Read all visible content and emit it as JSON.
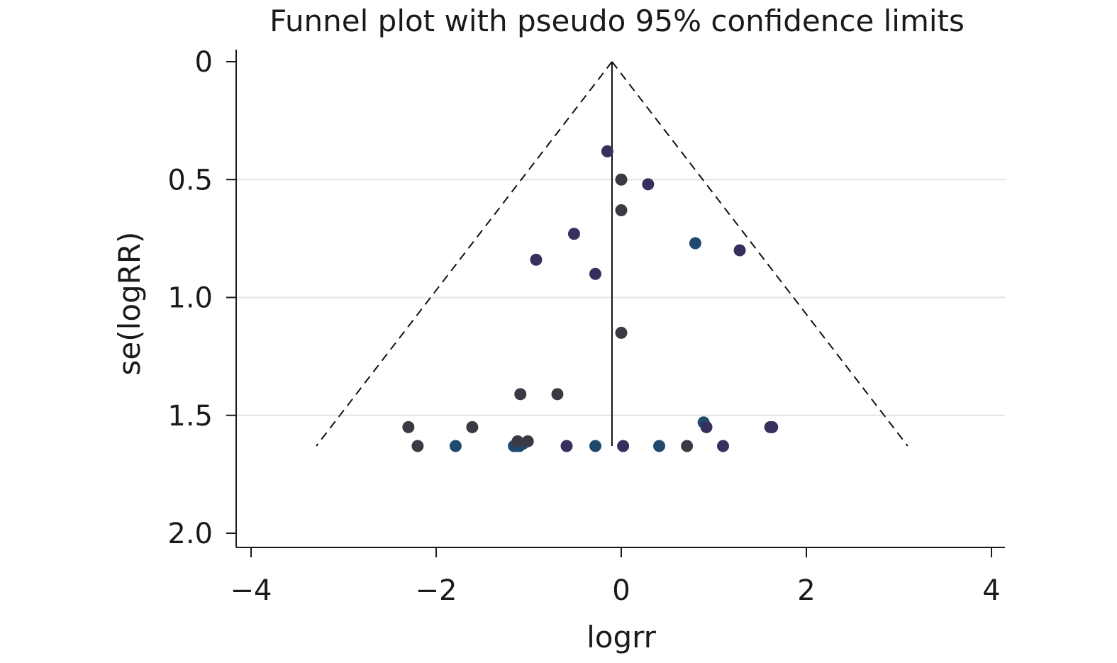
{
  "chart_data": {
    "type": "scatter",
    "title": "Funnel plot with pseudo 95% confidence limits",
    "xlabel": "logrr",
    "ylabel": "se(logRR)",
    "xlim": [
      -4,
      4
    ],
    "ylim": [
      0,
      2.0
    ],
    "y_reversed": true,
    "x_ticks": [
      -4,
      -2,
      0,
      2,
      4
    ],
    "x_tick_labels": [
      "−4",
      "−2",
      "0",
      "2",
      "4"
    ],
    "y_ticks": [
      0,
      0.5,
      1.0,
      1.5,
      2.0
    ],
    "y_tick_labels": [
      "0",
      "0.5",
      "1.0",
      "1.5",
      "2.0"
    ],
    "grid": "horizontal",
    "pooled_estimate": -0.1,
    "funnel_max_se": 1.63,
    "colors": {
      "dark_gray": "#3a3a44",
      "navy": "#35305e",
      "teal": "#1f4a6e",
      "axis": "#1a1a1a",
      "grid": "#e3e3e3"
    },
    "points": [
      {
        "x": -0.15,
        "y": 0.38,
        "c": "navy"
      },
      {
        "x": 0.0,
        "y": 0.5,
        "c": "dark_gray"
      },
      {
        "x": 0.29,
        "y": 0.52,
        "c": "navy"
      },
      {
        "x": 0.0,
        "y": 0.63,
        "c": "dark_gray"
      },
      {
        "x": -0.51,
        "y": 0.73,
        "c": "navy"
      },
      {
        "x": 0.8,
        "y": 0.77,
        "c": "teal"
      },
      {
        "x": 1.28,
        "y": 0.8,
        "c": "navy"
      },
      {
        "x": -0.92,
        "y": 0.84,
        "c": "navy"
      },
      {
        "x": -0.28,
        "y": 0.9,
        "c": "navy"
      },
      {
        "x": 0.0,
        "y": 1.15,
        "c": "dark_gray"
      },
      {
        "x": -1.09,
        "y": 1.41,
        "c": "dark_gray"
      },
      {
        "x": -0.69,
        "y": 1.41,
        "c": "dark_gray"
      },
      {
        "x": 0.89,
        "y": 1.53,
        "c": "teal"
      },
      {
        "x": 0.92,
        "y": 1.55,
        "c": "navy"
      },
      {
        "x": -2.3,
        "y": 1.55,
        "c": "dark_gray"
      },
      {
        "x": -1.61,
        "y": 1.55,
        "c": "dark_gray"
      },
      {
        "x": 1.61,
        "y": 1.55,
        "c": "navy"
      },
      {
        "x": 1.63,
        "y": 1.55,
        "c": "navy"
      },
      {
        "x": -2.2,
        "y": 1.63,
        "c": "dark_gray"
      },
      {
        "x": -1.79,
        "y": 1.63,
        "c": "teal"
      },
      {
        "x": -1.16,
        "y": 1.63,
        "c": "teal"
      },
      {
        "x": -1.13,
        "y": 1.63,
        "c": "teal"
      },
      {
        "x": -1.1,
        "y": 1.63,
        "c": "teal"
      },
      {
        "x": -1.06,
        "y": 1.62,
        "c": "teal"
      },
      {
        "x": -1.12,
        "y": 1.61,
        "c": "dark_gray"
      },
      {
        "x": -1.01,
        "y": 1.61,
        "c": "dark_gray"
      },
      {
        "x": -0.59,
        "y": 1.63,
        "c": "navy"
      },
      {
        "x": -0.28,
        "y": 1.63,
        "c": "teal"
      },
      {
        "x": 0.02,
        "y": 1.63,
        "c": "navy"
      },
      {
        "x": 0.41,
        "y": 1.63,
        "c": "teal"
      },
      {
        "x": 0.71,
        "y": 1.63,
        "c": "dark_gray"
      },
      {
        "x": 1.1,
        "y": 1.63,
        "c": "navy"
      }
    ]
  }
}
